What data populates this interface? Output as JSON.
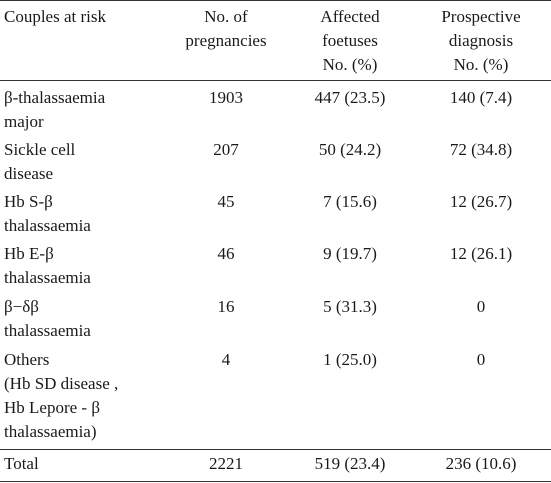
{
  "table": {
    "headers": [
      "Couples at risk",
      "No. of\npregnancies",
      "Affected\nfoetuses\nNo. (%)",
      "Prospective\ndiagnosis\nNo. (%)"
    ],
    "rows": [
      {
        "couples": "β-thalassaemia\nmajor",
        "pregnancies": "1903",
        "affected": "447 (23.5)",
        "prospective": "140 (7.4)"
      },
      {
        "couples": "Sickle cell\ndisease",
        "pregnancies": "207",
        "affected": "50 (24.2)",
        "prospective": "72 (34.8)"
      },
      {
        "couples": "Hb S-β\nthalassaemia",
        "pregnancies": "45",
        "affected": "7 (15.6)",
        "prospective": "12 (26.7)"
      },
      {
        "couples": "Hb E-β\nthalassaemia",
        "pregnancies": "46",
        "affected": "9 (19.7)",
        "prospective": "12 (26.1)"
      },
      {
        "couples": "β−δβ\nthalassaemia",
        "pregnancies": "16",
        "affected": "5 (31.3)",
        "prospective": "0"
      },
      {
        "couples": "Others\n(Hb SD disease ,\nHb Lepore - β\nthalassaemia)",
        "pregnancies": "4",
        "affected": "1 (25.0)",
        "prospective": "0"
      }
    ],
    "total": {
      "couples": "Total",
      "pregnancies": "2221",
      "affected": "519 (23.4)",
      "prospective": "236 (10.6)"
    }
  }
}
